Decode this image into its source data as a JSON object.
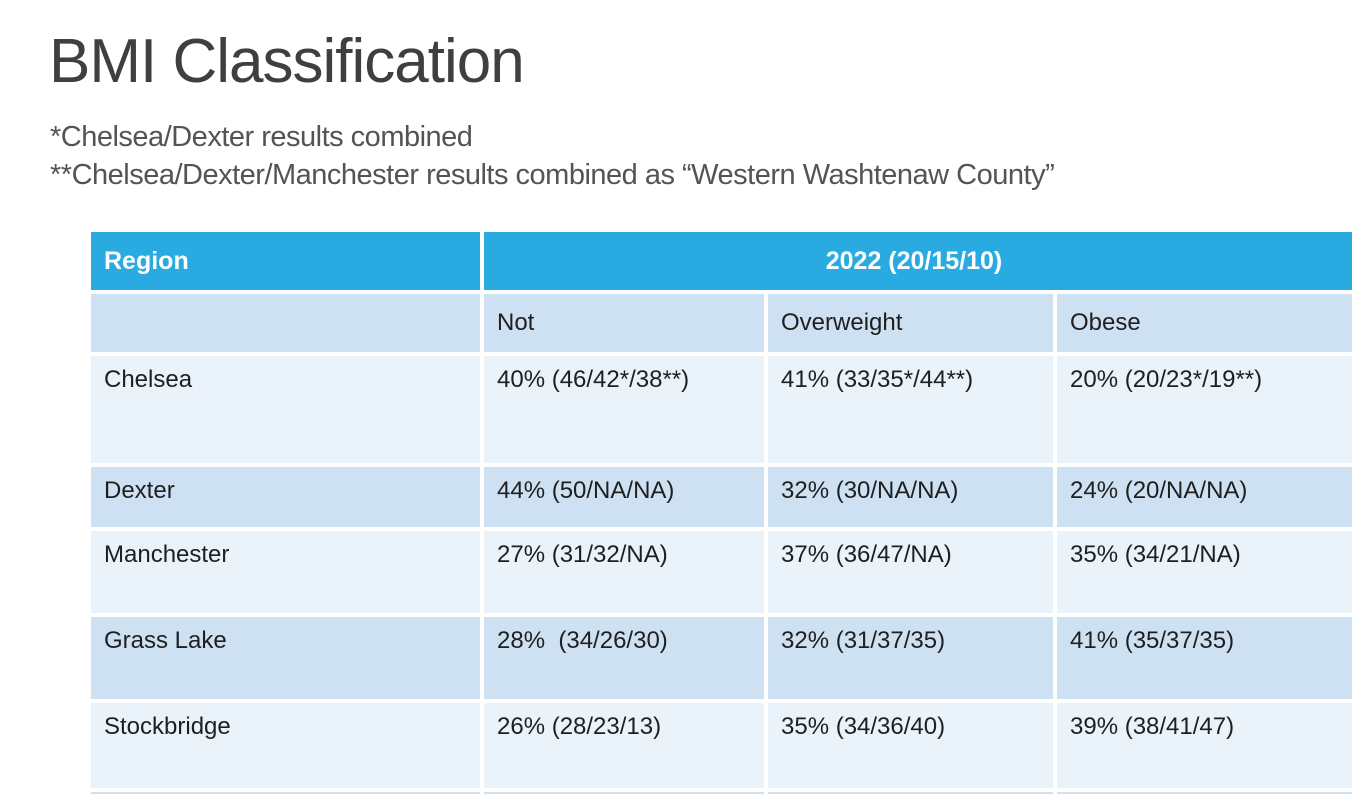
{
  "page": {
    "title": "BMI Classification",
    "footnotes": [
      "*Chelsea/Dexter results combined",
      "**Chelsea/Dexter/Manchester results combined as “Western Washtenaw County”"
    ]
  },
  "table": {
    "header": {
      "region_label": "Region",
      "year_label": "2022 (20/15/10)"
    },
    "columns": [
      "Not",
      "Overweight",
      "Obese"
    ],
    "rows": [
      {
        "region": "Chelsea",
        "not": "40% (46/42*/38**)",
        "overweight": "41% (33/35*/44**)",
        "obese": "20% (20/23*/19**)"
      },
      {
        "region": "Dexter",
        "not": "44% (50/NA/NA)",
        "overweight": "32% (30/NA/NA)",
        "obese": "24% (20/NA/NA)"
      },
      {
        "region": "Manchester",
        "not": "27% (31/32/NA)",
        "overweight": "37% (36/47/NA)",
        "obese": "35% (34/21/NA)"
      },
      {
        "region": "Grass Lake",
        "not": "28%  (34/26/30)",
        "overweight": "32% (31/37/35)",
        "obese": "41% (35/37/35)"
      },
      {
        "region": "Stockbridge",
        "not": "26% (28/23/13)",
        "overweight": "35% (34/36/40)",
        "obese": "39% (38/41/47)"
      }
    ],
    "colors": {
      "header_bg": "#29ABE2",
      "band_dark": "#CDE1F3",
      "band_light": "#EAF2FA",
      "header_text": "#FFFFFF",
      "cell_text": "#1F1F1F",
      "title_text": "#3F3F3F",
      "footnote_text": "#545454"
    }
  },
  "chart_data": {
    "type": "table",
    "title": "BMI Classification",
    "column_headers": [
      "Region",
      "Not",
      "Overweight",
      "Obese"
    ],
    "group_header": "2022 (20/15/10)",
    "rows": [
      [
        "Chelsea",
        "40% (46/42*/38**)",
        "41% (33/35*/44**)",
        "20% (20/23*/19**)"
      ],
      [
        "Dexter",
        "44% (50/NA/NA)",
        "32% (30/NA/NA)",
        "24% (20/NA/NA)"
      ],
      [
        "Manchester",
        "27% (31/32/NA)",
        "37% (36/47/NA)",
        "35% (34/21/NA)"
      ],
      [
        "Grass Lake",
        "28%  (34/26/30)",
        "32% (31/37/35)",
        "41% (35/37/35)"
      ],
      [
        "Stockbridge",
        "26% (28/23/13)",
        "35% (34/36/40)",
        "39% (38/41/47)"
      ]
    ]
  }
}
